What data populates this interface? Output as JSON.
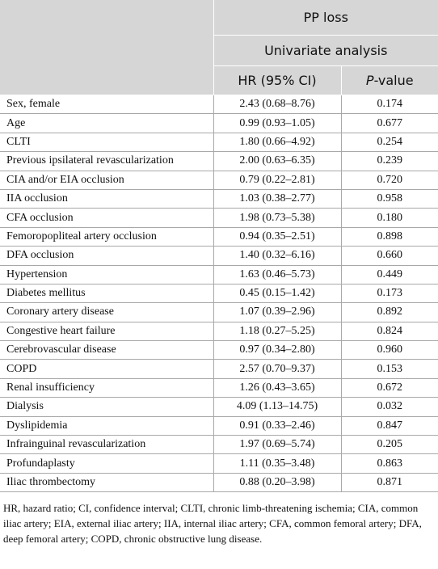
{
  "table": {
    "header": {
      "group": "PP loss",
      "subgroup": "Univariate analysis",
      "columns": [
        "HR (95% CI)"
      ],
      "pvalue": {
        "italic": "P",
        "rest": "-value"
      }
    },
    "rows": [
      [
        "Sex, female",
        "2.43 (0.68–8.76)",
        "0.174"
      ],
      [
        "Age",
        "0.99 (0.93–1.05)",
        "0.677"
      ],
      [
        "CLTI",
        "1.80 (0.66–4.92)",
        "0.254"
      ],
      [
        "Previous ipsilateral revascularization",
        "2.00 (0.63–6.35)",
        "0.239"
      ],
      [
        "CIA and/or EIA occlusion",
        "0.79 (0.22–2.81)",
        "0.720"
      ],
      [
        "IIA occlusion",
        "1.03 (0.38–2.77)",
        "0.958"
      ],
      [
        "CFA occlusion",
        "1.98 (0.73–5.38)",
        "0.180"
      ],
      [
        "Femoropopliteal artery occlusion",
        "0.94 (0.35–2.51)",
        "0.898"
      ],
      [
        "DFA occlusion",
        "1.40 (0.32–6.16)",
        "0.660"
      ],
      [
        "Hypertension",
        "1.63 (0.46–5.73)",
        "0.449"
      ],
      [
        "Diabetes mellitus",
        "0.45 (0.15–1.42)",
        "0.173"
      ],
      [
        "Coronary artery disease",
        "1.07 (0.39–2.96)",
        "0.892"
      ],
      [
        "Congestive heart failure",
        "1.18 (0.27–5.25)",
        "0.824"
      ],
      [
        "Cerebrovascular disease",
        "0.97 (0.34–2.80)",
        "0.960"
      ],
      [
        "COPD",
        "2.57 (0.70–9.37)",
        "0.153"
      ],
      [
        "Renal insufficiency",
        "1.26 (0.43–3.65)",
        "0.672"
      ],
      [
        "Dialysis",
        "4.09 (1.13–14.75)",
        "0.032"
      ],
      [
        "Dyslipidemia",
        "0.91 (0.33–2.46)",
        "0.847"
      ],
      [
        "Infrainguinal revascularization",
        "1.97 (0.69–5.74)",
        "0.205"
      ],
      [
        "Profundaplasty",
        "1.11 (0.35–3.48)",
        "0.863"
      ],
      [
        "Iliac thrombectomy",
        "0.88 (0.20–3.98)",
        "0.871"
      ]
    ]
  },
  "footnote": "HR, hazard ratio; CI, confidence interval; CLTI, chronic limb-threatening ischemia; CIA, common iliac artery; EIA, external iliac artery; IIA, internal iliac artery; CFA, common femoral artery; DFA, deep femoral artery; COPD, chronic obstructive lung disease."
}
